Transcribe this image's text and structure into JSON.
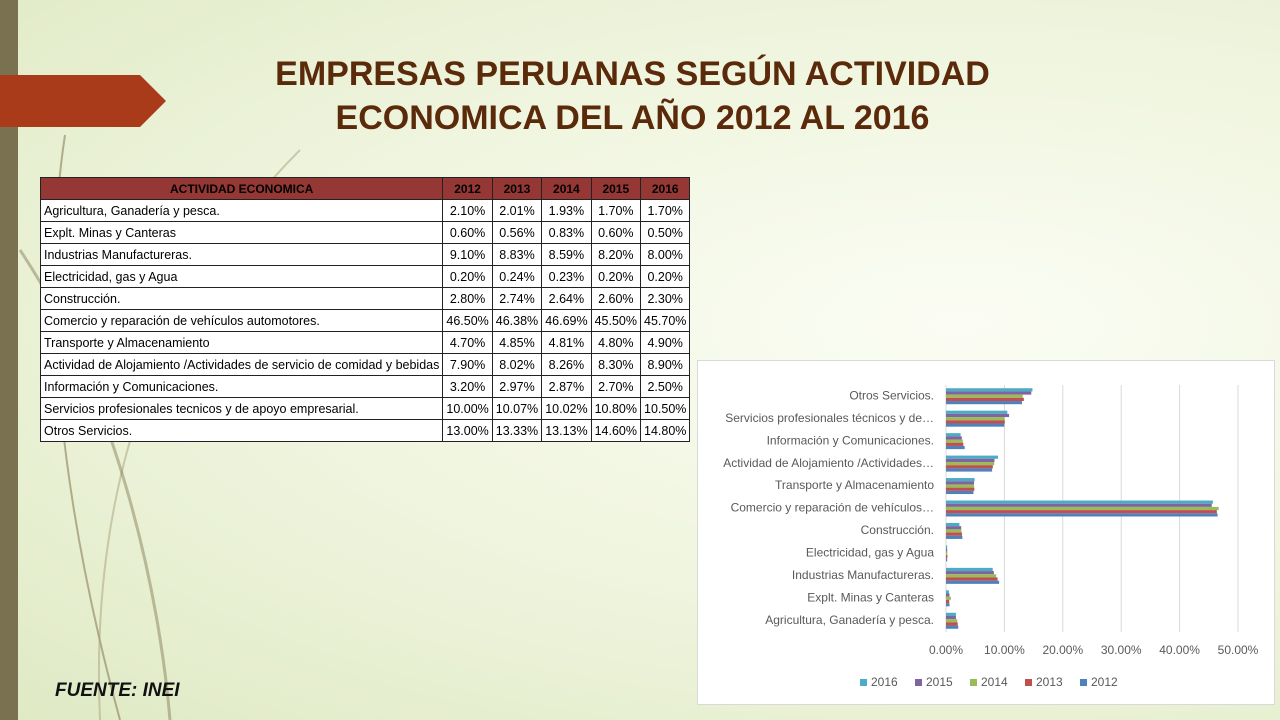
{
  "title": [
    "EMPRESAS PERUANAS SEGÚN ACTIVIDAD",
    "ECONOMICA DEL AÑO 2012 AL 2016"
  ],
  "table": {
    "header": [
      "ACTIVIDAD ECONOMICA",
      "2012",
      "2013",
      "2014",
      "2015",
      "2016"
    ],
    "rows": [
      [
        "Agricultura, Ganadería y pesca.",
        "2.10%",
        "2.01%",
        "1.93%",
        "1.70%",
        "1.70%"
      ],
      [
        "Explt. Minas y Canteras",
        "0.60%",
        "0.56%",
        "0.83%",
        "0.60%",
        "0.50%"
      ],
      [
        "Industrias Manufactureras.",
        "9.10%",
        "8.83%",
        "8.59%",
        "8.20%",
        "8.00%"
      ],
      [
        "Electricidad, gas y Agua",
        "0.20%",
        "0.24%",
        "0.23%",
        "0.20%",
        "0.20%"
      ],
      [
        "Construcción.",
        "2.80%",
        "2.74%",
        "2.64%",
        "2.60%",
        "2.30%"
      ],
      [
        "Comercio y reparación de vehículos automotores.",
        "46.50%",
        "46.38%",
        "46.69%",
        "45.50%",
        "45.70%"
      ],
      [
        "Transporte y Almacenamiento",
        "4.70%",
        "4.85%",
        "4.81%",
        "4.80%",
        "4.90%"
      ],
      [
        "Actividad de Alojamiento /Actividades de servicio de comidad y bebidas",
        "7.90%",
        "8.02%",
        "8.26%",
        "8.30%",
        "8.90%"
      ],
      [
        "Información y Comunicaciones.",
        "3.20%",
        "2.97%",
        "2.87%",
        "2.70%",
        "2.50%"
      ],
      [
        "Servicios profesionales tecnicos y de apoyo empresarial.",
        "10.00%",
        "10.07%",
        "10.02%",
        "10.80%",
        "10.50%"
      ],
      [
        "Otros Servicios.",
        "13.00%",
        "13.33%",
        "13.13%",
        "14.60%",
        "14.80%"
      ]
    ]
  },
  "source": "FUENTE: INEI",
  "chart_data": {
    "type": "barh",
    "categories": [
      "Agricultura, Ganadería y pesca.",
      "Explt. Minas y Canteras",
      "Industrias Manufactureras.",
      "Electricidad, gas y Agua",
      "Construcción.",
      "Comercio y reparación de vehículos…",
      "Transporte y Almacenamiento",
      "Actividad de Alojamiento /Actividades…",
      "Información y Comunicaciones.",
      "Servicios profesionales técnicos y de…",
      "Otros Servicios."
    ],
    "series": [
      {
        "name": "2016",
        "color": "#4bacc6",
        "values": [
          1.7,
          0.5,
          8,
          0.2,
          2.3,
          45.7,
          4.9,
          8.9,
          2.5,
          10.5,
          14.8
        ]
      },
      {
        "name": "2015",
        "color": "#8064a2",
        "values": [
          1.7,
          0.6,
          8.2,
          0.2,
          2.6,
          45.5,
          4.8,
          8.3,
          2.7,
          10.8,
          14.6
        ]
      },
      {
        "name": "2014",
        "color": "#9bbb59",
        "values": [
          1.93,
          0.83,
          8.59,
          0.23,
          2.64,
          46.69,
          4.81,
          8.26,
          2.87,
          10.02,
          13.13
        ]
      },
      {
        "name": "2013",
        "color": "#c0504d",
        "values": [
          2.01,
          0.56,
          8.83,
          0.24,
          2.74,
          46.38,
          4.85,
          8.02,
          2.97,
          10.07,
          13.33
        ]
      },
      {
        "name": "2012",
        "color": "#4f81bd",
        "values": [
          2.1,
          0.6,
          9.1,
          0.2,
          2.8,
          46.5,
          4.7,
          7.9,
          3.2,
          10,
          13
        ]
      }
    ],
    "xlim": [
      0,
      50
    ],
    "xticks": [
      {
        "value": 0,
        "label": "0.00%"
      },
      {
        "value": 10,
        "label": "10.00%"
      },
      {
        "value": 20,
        "label": "20.00%"
      },
      {
        "value": 30,
        "label": "30.00%"
      },
      {
        "value": 40,
        "label": "40.00%"
      },
      {
        "value": 50,
        "label": "50.00%"
      }
    ],
    "grid": true,
    "legend": "bottom"
  }
}
